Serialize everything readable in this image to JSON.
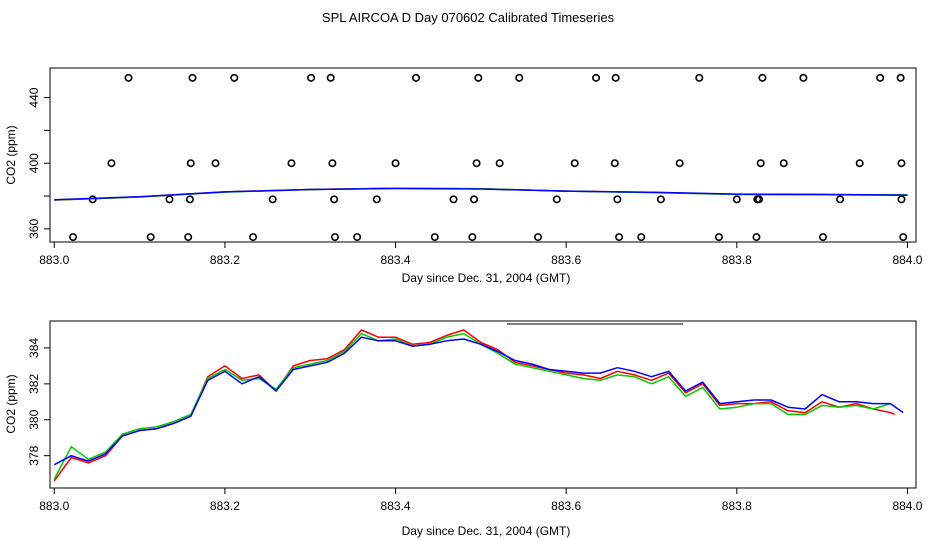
{
  "title": "SPL AIRCOA D  Day 070602  Calibrated Timeseries",
  "chart_data": [
    {
      "type": "line",
      "title": "",
      "xlabel": "Day since Dec. 31, 2004 (GMT)",
      "ylabel": "CO2 (ppm)",
      "xlim": [
        882.995,
        884.01
      ],
      "ylim": [
        352,
        458
      ],
      "xticks": [
        883.0,
        883.2,
        883.4,
        883.6,
        883.8,
        884.0
      ],
      "xtick_labels": [
        "883.0",
        "883.2",
        "883.4",
        "883.6",
        "883.8",
        "884.0"
      ],
      "yticks": [
        360,
        380,
        400,
        420,
        440
      ],
      "ytick_labels": [
        "360",
        "",
        "400",
        "",
        "440"
      ],
      "series": [
        {
          "name": "red",
          "color": "#ff0000",
          "x": [
            883.0,
            883.1,
            883.2,
            883.3,
            883.4,
            883.5,
            883.6,
            883.7,
            883.8,
            883.9,
            884.0
          ],
          "y": [
            377.5,
            379.5,
            382.5,
            384.0,
            384.8,
            384.5,
            383.0,
            382.2,
            381.0,
            380.8,
            380.6
          ]
        },
        {
          "name": "green",
          "color": "#00cc00",
          "x": [
            883.0,
            883.1,
            883.2,
            883.3,
            883.4,
            883.5,
            883.6,
            883.7,
            883.8,
            883.9,
            884.0
          ],
          "y": [
            377.6,
            379.5,
            382.4,
            384.0,
            384.7,
            384.4,
            383.0,
            382.1,
            381.0,
            380.8,
            380.7
          ]
        },
        {
          "name": "blue",
          "color": "#0000ff",
          "x": [
            883.0,
            883.1,
            883.2,
            883.3,
            883.4,
            883.5,
            883.6,
            883.7,
            883.8,
            883.9,
            884.0
          ],
          "y": [
            377.7,
            379.6,
            382.5,
            384.0,
            384.6,
            384.3,
            383.0,
            382.3,
            381.2,
            381.0,
            380.5
          ]
        }
      ],
      "points": [
        {
          "x": 883.087,
          "y": 452
        },
        {
          "x": 883.162,
          "y": 452
        },
        {
          "x": 883.211,
          "y": 452
        },
        {
          "x": 883.301,
          "y": 452
        },
        {
          "x": 883.324,
          "y": 452
        },
        {
          "x": 883.424,
          "y": 452
        },
        {
          "x": 883.497,
          "y": 452
        },
        {
          "x": 883.545,
          "y": 452
        },
        {
          "x": 883.635,
          "y": 452
        },
        {
          "x": 883.658,
          "y": 452
        },
        {
          "x": 883.756,
          "y": 452
        },
        {
          "x": 883.83,
          "y": 452
        },
        {
          "x": 883.878,
          "y": 452
        },
        {
          "x": 883.968,
          "y": 452
        },
        {
          "x": 883.992,
          "y": 452
        },
        {
          "x": 883.067,
          "y": 400
        },
        {
          "x": 883.16,
          "y": 400
        },
        {
          "x": 883.189,
          "y": 400
        },
        {
          "x": 883.278,
          "y": 400
        },
        {
          "x": 883.326,
          "y": 400
        },
        {
          "x": 883.4,
          "y": 400
        },
        {
          "x": 883.495,
          "y": 400
        },
        {
          "x": 883.522,
          "y": 400
        },
        {
          "x": 883.61,
          "y": 400
        },
        {
          "x": 883.657,
          "y": 400
        },
        {
          "x": 883.733,
          "y": 400
        },
        {
          "x": 883.828,
          "y": 400
        },
        {
          "x": 883.855,
          "y": 400
        },
        {
          "x": 883.944,
          "y": 400
        },
        {
          "x": 883.993,
          "y": 400
        },
        {
          "x": 883.045,
          "y": 378
        },
        {
          "x": 883.135,
          "y": 378
        },
        {
          "x": 883.159,
          "y": 378
        },
        {
          "x": 883.256,
          "y": 378
        },
        {
          "x": 883.328,
          "y": 378
        },
        {
          "x": 883.378,
          "y": 378
        },
        {
          "x": 883.468,
          "y": 378
        },
        {
          "x": 883.492,
          "y": 378
        },
        {
          "x": 883.589,
          "y": 378
        },
        {
          "x": 883.66,
          "y": 378
        },
        {
          "x": 883.711,
          "y": 378
        },
        {
          "x": 883.8,
          "y": 378
        },
        {
          "x": 883.824,
          "y": 378
        },
        {
          "x": 883.826,
          "y": 378
        },
        {
          "x": 883.921,
          "y": 378
        },
        {
          "x": 883.993,
          "y": 378
        },
        {
          "x": 883.022,
          "y": 355
        },
        {
          "x": 883.113,
          "y": 355
        },
        {
          "x": 883.157,
          "y": 355
        },
        {
          "x": 883.233,
          "y": 355
        },
        {
          "x": 883.329,
          "y": 355
        },
        {
          "x": 883.355,
          "y": 355
        },
        {
          "x": 883.446,
          "y": 355
        },
        {
          "x": 883.49,
          "y": 355
        },
        {
          "x": 883.567,
          "y": 355
        },
        {
          "x": 883.662,
          "y": 355
        },
        {
          "x": 883.688,
          "y": 355
        },
        {
          "x": 883.779,
          "y": 355
        },
        {
          "x": 883.823,
          "y": 355
        },
        {
          "x": 883.901,
          "y": 355
        },
        {
          "x": 883.995,
          "y": 355
        }
      ]
    },
    {
      "type": "line",
      "title": "",
      "xlabel": "Day since Dec. 31, 2004 (GMT)",
      "ylabel": "CO2 (ppm)",
      "xlim": [
        882.995,
        884.01
      ],
      "ylim": [
        376.2,
        385.5
      ],
      "xticks": [
        883.0,
        883.2,
        883.4,
        883.6,
        883.8,
        884.0
      ],
      "xtick_labels": [
        "883.0",
        "883.2",
        "883.4",
        "883.6",
        "883.8",
        "884.0"
      ],
      "yticks": [
        378,
        380,
        382,
        384
      ],
      "ytick_labels": [
        "378",
        "380",
        "382",
        "384"
      ],
      "series": [
        {
          "name": "red",
          "color": "#ff0000",
          "x": [
            883.0,
            883.02,
            883.04,
            883.06,
            883.08,
            883.1,
            883.12,
            883.14,
            883.16,
            883.18,
            883.2,
            883.22,
            883.24,
            883.26,
            883.28,
            883.3,
            883.32,
            883.34,
            883.36,
            883.38,
            883.4,
            883.42,
            883.44,
            883.46,
            883.48,
            883.5,
            883.52,
            883.54,
            883.56,
            883.58,
            883.6,
            883.62,
            883.64,
            883.66,
            883.68,
            883.7,
            883.72,
            883.74,
            883.76,
            883.78,
            883.8,
            883.82,
            883.84,
            883.86,
            883.88,
            883.9,
            883.92,
            883.94,
            883.96,
            883.98,
            883.985
          ],
          "y": [
            376.6,
            377.9,
            377.6,
            378.0,
            379.1,
            379.4,
            379.5,
            379.8,
            380.2,
            382.4,
            383.0,
            382.3,
            382.5,
            381.6,
            383.0,
            383.3,
            383.4,
            383.9,
            385.0,
            384.6,
            384.6,
            384.2,
            384.3,
            384.7,
            385.0,
            384.3,
            383.9,
            383.2,
            383.0,
            382.8,
            382.6,
            382.5,
            382.3,
            382.7,
            382.5,
            382.2,
            382.6,
            381.5,
            382.0,
            380.8,
            380.9,
            380.9,
            381.0,
            380.5,
            380.4,
            381.0,
            380.7,
            380.9,
            380.6,
            380.4,
            380.3
          ]
        },
        {
          "name": "green",
          "color": "#00cc00",
          "x": [
            883.0,
            883.02,
            883.04,
            883.06,
            883.08,
            883.1,
            883.12,
            883.14,
            883.16,
            883.18,
            883.2,
            883.22,
            883.24,
            883.26,
            883.28,
            883.3,
            883.32,
            883.34,
            883.36,
            883.38,
            883.4,
            883.42,
            883.44,
            883.46,
            883.48,
            883.5,
            883.52,
            883.54,
            883.56,
            883.58,
            883.6,
            883.62,
            883.64,
            883.66,
            883.68,
            883.7,
            883.72,
            883.74,
            883.76,
            883.78,
            883.8,
            883.82,
            883.84,
            883.86,
            883.88,
            883.9,
            883.92,
            883.94,
            883.96,
            883.98
          ],
          "y": [
            376.7,
            378.5,
            377.8,
            378.2,
            379.2,
            379.5,
            379.6,
            379.9,
            380.3,
            382.3,
            382.8,
            382.2,
            382.3,
            381.7,
            382.9,
            383.1,
            383.3,
            383.8,
            384.8,
            384.4,
            384.5,
            384.1,
            384.2,
            384.6,
            384.8,
            384.2,
            383.7,
            383.1,
            382.9,
            382.7,
            382.5,
            382.3,
            382.2,
            382.5,
            382.4,
            382.0,
            382.4,
            381.3,
            381.8,
            380.6,
            380.7,
            380.9,
            380.9,
            380.3,
            380.3,
            380.8,
            380.7,
            380.8,
            380.6,
            380.9
          ]
        },
        {
          "name": "blue",
          "color": "#0000ff",
          "x": [
            883.0,
            883.02,
            883.04,
            883.06,
            883.08,
            883.1,
            883.12,
            883.14,
            883.16,
            883.18,
            883.2,
            883.22,
            883.24,
            883.26,
            883.28,
            883.3,
            883.32,
            883.34,
            883.36,
            883.38,
            883.4,
            883.42,
            883.44,
            883.46,
            883.48,
            883.5,
            883.52,
            883.54,
            883.56,
            883.58,
            883.6,
            883.62,
            883.64,
            883.66,
            883.68,
            883.7,
            883.72,
            883.74,
            883.76,
            883.78,
            883.8,
            883.82,
            883.84,
            883.86,
            883.88,
            883.9,
            883.92,
            883.94,
            883.96,
            883.98,
            883.995
          ],
          "y": [
            377.5,
            378.0,
            377.7,
            378.1,
            379.1,
            379.4,
            379.5,
            379.8,
            380.2,
            382.2,
            382.7,
            382.0,
            382.4,
            381.6,
            382.8,
            383.0,
            383.2,
            383.7,
            384.6,
            384.4,
            384.4,
            384.1,
            384.2,
            384.4,
            384.5,
            384.2,
            383.8,
            383.3,
            383.1,
            382.8,
            382.7,
            382.6,
            382.6,
            382.9,
            382.7,
            382.4,
            382.7,
            381.6,
            382.1,
            380.9,
            381.0,
            381.1,
            381.1,
            380.7,
            380.6,
            381.4,
            381.0,
            381.0,
            380.9,
            380.9,
            380.4
          ]
        }
      ]
    }
  ]
}
